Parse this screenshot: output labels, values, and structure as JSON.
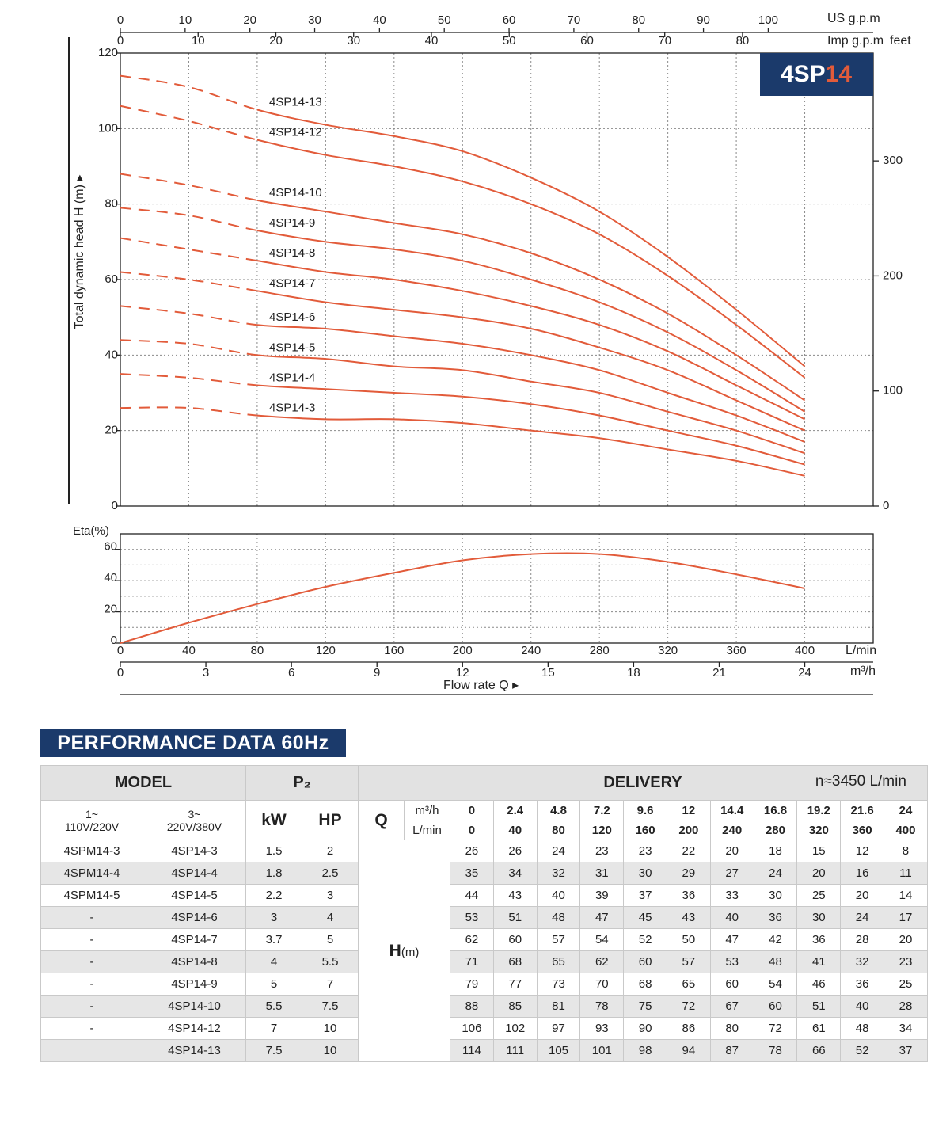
{
  "chart_data": [
    {
      "type": "line",
      "ylabel": "Total dynamic head H (m) ▸",
      "y2label": "feet",
      "badge": {
        "model": "4SP",
        "size": "14"
      },
      "x": [
        0,
        40,
        80,
        120,
        160,
        200,
        240,
        280,
        320,
        360,
        400
      ],
      "xlim": [
        0,
        440
      ],
      "ylim": [
        0,
        120
      ],
      "yticks": [
        0,
        20,
        40,
        60,
        80,
        100,
        120
      ],
      "y2lim": [
        0,
        393.7
      ],
      "y2ticks": [
        0,
        100,
        200,
        300
      ],
      "grid": true,
      "dashed_below": 80,
      "top_axes": [
        {
          "label": "US g.p.m",
          "lim": [
            0,
            116.2
          ],
          "ticks": [
            0,
            10,
            20,
            30,
            40,
            50,
            60,
            70,
            80,
            90,
            100
          ]
        },
        {
          "label": "Imp g.p.m",
          "lim": [
            0,
            96.8
          ],
          "ticks": [
            0,
            10,
            20,
            30,
            40,
            50,
            60,
            70,
            80
          ]
        }
      ],
      "series": [
        {
          "name": "4SP14-3",
          "color": "#e25b3a",
          "values": [
            26,
            26,
            24,
            23,
            23,
            22,
            20,
            18,
            15,
            12,
            8
          ]
        },
        {
          "name": "4SP14-4",
          "color": "#e25b3a",
          "values": [
            35,
            34,
            32,
            31,
            30,
            29,
            27,
            24,
            20,
            16,
            11
          ]
        },
        {
          "name": "4SP14-5",
          "color": "#e25b3a",
          "values": [
            44,
            43,
            40,
            39,
            37,
            36,
            33,
            30,
            25,
            20,
            14
          ]
        },
        {
          "name": "4SP14-6",
          "color": "#e25b3a",
          "values": [
            53,
            51,
            48,
            47,
            45,
            43,
            40,
            36,
            30,
            24,
            17
          ]
        },
        {
          "name": "4SP14-7",
          "color": "#e25b3a",
          "values": [
            62,
            60,
            57,
            54,
            52,
            50,
            47,
            42,
            36,
            28,
            20
          ]
        },
        {
          "name": "4SP14-8",
          "color": "#e25b3a",
          "values": [
            71,
            68,
            65,
            62,
            60,
            57,
            53,
            48,
            41,
            32,
            23
          ]
        },
        {
          "name": "4SP14-9",
          "color": "#e25b3a",
          "values": [
            79,
            77,
            73,
            70,
            68,
            65,
            60,
            54,
            46,
            36,
            25
          ]
        },
        {
          "name": "4SP14-10",
          "color": "#e25b3a",
          "values": [
            88,
            85,
            81,
            78,
            75,
            72,
            67,
            60,
            51,
            40,
            28
          ]
        },
        {
          "name": "4SP14-12",
          "color": "#e25b3a",
          "values": [
            106,
            102,
            97,
            93,
            90,
            86,
            80,
            72,
            61,
            48,
            34
          ]
        },
        {
          "name": "4SP14-13",
          "color": "#e25b3a",
          "values": [
            114,
            111,
            105,
            101,
            98,
            94,
            87,
            78,
            66,
            52,
            37
          ]
        }
      ]
    },
    {
      "type": "line",
      "ylabel": "Eta(%)",
      "x": [
        0,
        40,
        80,
        120,
        160,
        200,
        240,
        280,
        320,
        360,
        400
      ],
      "xlim": [
        0,
        440
      ],
      "xticks": [
        0,
        40,
        80,
        120,
        160,
        200,
        240,
        280,
        320,
        360,
        400
      ],
      "xlabel": "L/min",
      "ylim": [
        0,
        70
      ],
      "yticks": [
        0,
        20,
        40,
        60
      ],
      "minor_yticks": [
        10,
        30,
        50
      ],
      "grid": true,
      "x2": {
        "label": "m³/h",
        "lim": [
          0,
          26.4
        ],
        "ticks": [
          0,
          3,
          6,
          9,
          12,
          15,
          18,
          21,
          24
        ]
      },
      "flow_label": "Flow rate  Q ▸",
      "series": [
        {
          "color": "#e25b3a",
          "values": [
            0,
            13,
            25,
            36,
            45,
            53,
            57,
            57,
            52,
            44,
            35
          ]
        }
      ]
    }
  ],
  "table": {
    "title": "PERFORMANCE DATA 60Hz",
    "header": {
      "model": "MODEL",
      "power": "P₂",
      "delivery": "DELIVERY",
      "speed": "n≈3450 L/min"
    },
    "subheader": {
      "single_phase": [
        "1~",
        "110V/220V"
      ],
      "three_phase": [
        "3~",
        "220V/380V"
      ],
      "kw": "kW",
      "hp": "HP",
      "q": "Q",
      "q_units": [
        "m³/h",
        "L/min"
      ],
      "h": "H",
      "h_unit": "(m)"
    },
    "flow_m3h": [
      0,
      2.4,
      4.8,
      7.2,
      9.6,
      12,
      14.4,
      16.8,
      19.2,
      21.6,
      24
    ],
    "flow_lmin": [
      0,
      40,
      80,
      120,
      160,
      200,
      240,
      280,
      320,
      360,
      400
    ],
    "rows": [
      {
        "single": "4SPM14-3",
        "three": "4SP14-3",
        "kw": 1.5,
        "hp": 2,
        "head": [
          26,
          26,
          24,
          23,
          23,
          22,
          20,
          18,
          15,
          12,
          8
        ]
      },
      {
        "single": "4SPM14-4",
        "three": "4SP14-4",
        "kw": 1.8,
        "hp": 2.5,
        "head": [
          35,
          34,
          32,
          31,
          30,
          29,
          27,
          24,
          20,
          16,
          11
        ]
      },
      {
        "single": "4SPM14-5",
        "three": "4SP14-5",
        "kw": 2.2,
        "hp": 3,
        "head": [
          44,
          43,
          40,
          39,
          37,
          36,
          33,
          30,
          25,
          20,
          14
        ]
      },
      {
        "single": "-",
        "three": "4SP14-6",
        "kw": 3,
        "hp": 4,
        "head": [
          53,
          51,
          48,
          47,
          45,
          43,
          40,
          36,
          30,
          24,
          17
        ]
      },
      {
        "single": "-",
        "three": "4SP14-7",
        "kw": 3.7,
        "hp": 5,
        "head": [
          62,
          60,
          57,
          54,
          52,
          50,
          47,
          42,
          36,
          28,
          20
        ]
      },
      {
        "single": "-",
        "three": "4SP14-8",
        "kw": 4,
        "hp": 5.5,
        "head": [
          71,
          68,
          65,
          62,
          60,
          57,
          53,
          48,
          41,
          32,
          23
        ]
      },
      {
        "single": "-",
        "three": "4SP14-9",
        "kw": 5,
        "hp": 7,
        "head": [
          79,
          77,
          73,
          70,
          68,
          65,
          60,
          54,
          46,
          36,
          25
        ]
      },
      {
        "single": "-",
        "three": "4SP14-10",
        "kw": 5.5,
        "hp": 7.5,
        "head": [
          88,
          85,
          81,
          78,
          75,
          72,
          67,
          60,
          51,
          40,
          28
        ]
      },
      {
        "single": "-",
        "three": "4SP14-12",
        "kw": 7,
        "hp": 10,
        "head": [
          106,
          102,
          97,
          93,
          90,
          86,
          80,
          72,
          61,
          48,
          34
        ]
      },
      {
        "single": null,
        "three": "4SP14-13",
        "kw": 7.5,
        "hp": 10,
        "head": [
          114,
          111,
          105,
          101,
          98,
          94,
          87,
          78,
          66,
          52,
          37
        ]
      }
    ]
  }
}
